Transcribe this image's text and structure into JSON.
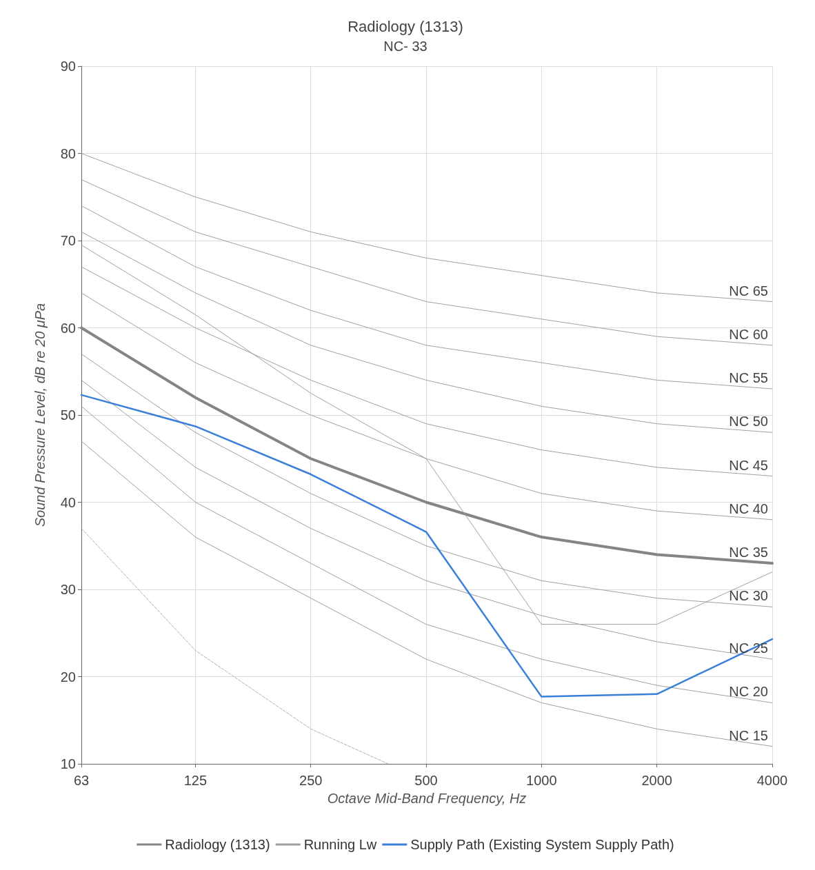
{
  "chart_data": {
    "type": "line",
    "title": "Radiology (1313)",
    "subtitle": "NC- 33",
    "xlabel": "Octave Mid-Band Frequency, Hz",
    "ylabel": "Sound Pressure Level, dB re 20 μPa",
    "log": "x",
    "x": [
      63,
      125,
      250,
      500,
      1000,
      2000,
      4000
    ],
    "xlim": [
      63,
      4000
    ],
    "xticks": [
      63,
      125,
      250,
      500,
      1000,
      2000,
      4000
    ],
    "ylim": [
      10,
      90
    ],
    "yticks": [
      10,
      20,
      30,
      40,
      50,
      60,
      70,
      80,
      90
    ],
    "grid": true,
    "legend": "bottom",
    "marker": "none",
    "line_style": "solid",
    "series": [
      {
        "color": "#a0a0a0",
        "values": [
          80,
          75,
          71,
          68,
          66,
          64,
          63
        ]
      },
      {
        "color": "#a0a0a0",
        "values": [
          77,
          71,
          67,
          63,
          61,
          59,
          58
        ]
      },
      {
        "color": "#a0a0a0",
        "values": [
          74,
          67,
          62,
          58,
          56,
          54,
          53
        ]
      },
      {
        "color": "#a0a0a0",
        "values": [
          71,
          64,
          58,
          54,
          51,
          49,
          48
        ]
      },
      {
        "color": "#a0a0a0",
        "values": [
          67,
          60,
          54,
          49,
          46,
          44,
          43
        ]
      },
      {
        "color": "#a0a0a0",
        "values": [
          64,
          56,
          50,
          45,
          41,
          39,
          38
        ]
      },
      {
        "color": "#a0a0a0",
        "values": [
          57,
          48,
          41,
          35,
          31,
          29,
          28
        ]
      },
      {
        "color": "#a0a0a0",
        "values": [
          54,
          44,
          37,
          31,
          27,
          24,
          22
        ]
      },
      {
        "color": "#a0a0a0",
        "values": [
          51,
          40,
          33,
          26,
          22,
          19,
          17
        ]
      },
      {
        "color": "#a0a0a0",
        "values": [
          47,
          36,
          29,
          22,
          17,
          14,
          12
        ]
      },
      {
        "name": "Radiology (1313)",
        "color": "#858585",
        "values": [
          60,
          52,
          45,
          40,
          36,
          34,
          33
        ]
      },
      {
        "name": "Running Lw",
        "color": "#a0a0a0",
        "values": [
          69.5,
          61.5,
          52.5,
          45,
          26,
          26,
          32
        ]
      },
      {
        "name": "Supply Path (Existing System Supply Path)",
        "color": "#3a80d8",
        "values": [
          52.3,
          48.7,
          43.2,
          36.6,
          17.7,
          18,
          24.3
        ]
      },
      {
        "color": "#b0b0b0",
        "line_style": "dashed",
        "x": [
          63,
          125,
          250,
          398
        ],
        "values": [
          37,
          23,
          14,
          10
        ]
      }
    ],
    "annotations": [
      {
        "text": "NC 65",
        "y": 63
      },
      {
        "text": "NC 60",
        "y": 58
      },
      {
        "text": "NC 55",
        "y": 53
      },
      {
        "text": "NC 50",
        "y": 48
      },
      {
        "text": "NC 45",
        "y": 43
      },
      {
        "text": "NC 40",
        "y": 38
      },
      {
        "text": "NC 35",
        "y": 33
      },
      {
        "text": "NC 30",
        "y": 28
      },
      {
        "text": "NC 25",
        "y": 22
      },
      {
        "text": "NC 20",
        "y": 17
      },
      {
        "text": "NC 15",
        "y": 12
      }
    ]
  }
}
